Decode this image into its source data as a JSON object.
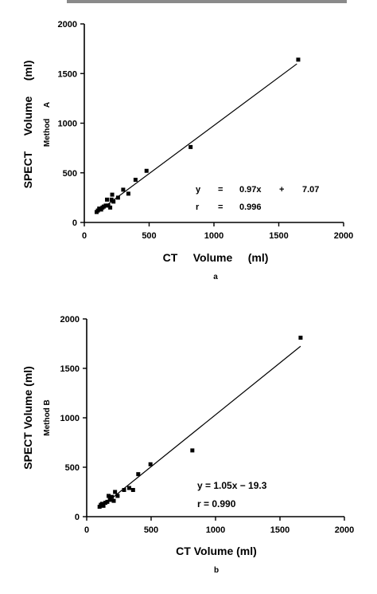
{
  "chart_data": [
    {
      "type": "scatter",
      "panel_label": "a",
      "xlabel": "CT     Volume     (ml)",
      "ylabel": "SPECT     Volume     (ml)",
      "ylabel_sub": "Method     A",
      "xlim": [
        0,
        2000
      ],
      "ylim": [
        0,
        2000
      ],
      "xticks": [
        0,
        500,
        1000,
        1500,
        2000
      ],
      "yticks": [
        0,
        500,
        1000,
        1500,
        2000
      ],
      "grid": false,
      "annotations": {
        "eq_y": "y",
        "eq_eq": "=",
        "eq_slope": "0.97x",
        "eq_plus": "+",
        "eq_intercept": "7.07",
        "r_label": "r",
        "r_eq": "=",
        "r_value": "0.996"
      },
      "fit": {
        "slope": 0.97,
        "intercept": 7.07,
        "x_range": [
          95,
          1640
        ]
      },
      "points": [
        [
          95,
          105
        ],
        [
          105,
          120
        ],
        [
          115,
          140
        ],
        [
          130,
          130
        ],
        [
          140,
          150
        ],
        [
          150,
          160
        ],
        [
          165,
          170
        ],
        [
          175,
          230
        ],
        [
          185,
          170
        ],
        [
          200,
          150
        ],
        [
          210,
          230
        ],
        [
          215,
          280
        ],
        [
          225,
          210
        ],
        [
          260,
          250
        ],
        [
          300,
          330
        ],
        [
          340,
          290
        ],
        [
          395,
          430
        ],
        [
          480,
          520
        ],
        [
          820,
          760
        ],
        [
          1650,
          1640
        ]
      ]
    },
    {
      "type": "scatter",
      "panel_label": "b",
      "xlabel": "CT Volume (ml)",
      "ylabel": "SPECT Volume (ml)",
      "ylabel_sub": "Method B",
      "xlim": [
        0,
        2000
      ],
      "ylim": [
        0,
        2000
      ],
      "xticks": [
        0,
        500,
        1000,
        1500,
        2000
      ],
      "yticks": [
        0,
        500,
        1000,
        1500,
        2000
      ],
      "grid": false,
      "annotations": {
        "equation": "y = 1.05x − 19.3",
        "r_text": "r = 0.990"
      },
      "fit": {
        "slope": 1.05,
        "intercept": -19.3,
        "x_range": [
          100,
          1660
        ]
      },
      "points": [
        [
          100,
          100
        ],
        [
          110,
          120
        ],
        [
          120,
          130
        ],
        [
          130,
          110
        ],
        [
          145,
          140
        ],
        [
          160,
          150
        ],
        [
          170,
          210
        ],
        [
          180,
          170
        ],
        [
          195,
          200
        ],
        [
          210,
          160
        ],
        [
          220,
          250
        ],
        [
          240,
          210
        ],
        [
          290,
          270
        ],
        [
          330,
          290
        ],
        [
          360,
          270
        ],
        [
          400,
          430
        ],
        [
          495,
          530
        ],
        [
          820,
          670
        ],
        [
          1660,
          1810
        ]
      ]
    }
  ]
}
